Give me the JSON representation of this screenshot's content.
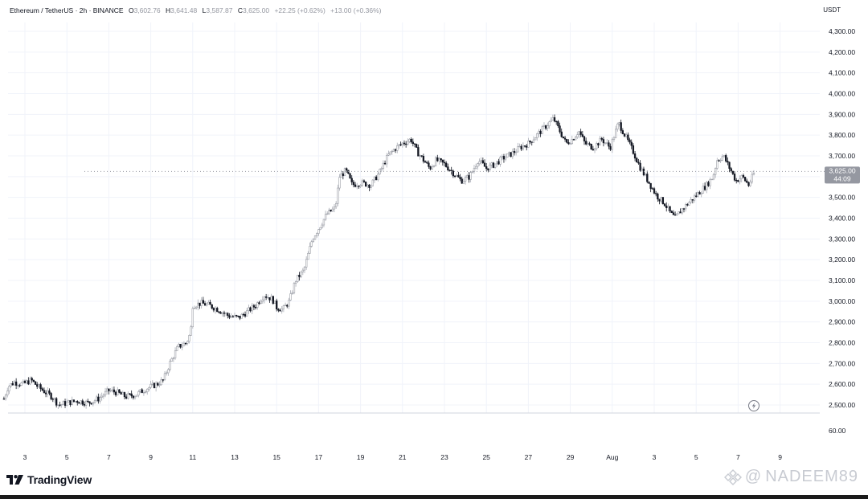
{
  "legend": {
    "symbol": "Ethereum / TetherUS · 2h · BINANCE",
    "o_label": "O",
    "o_value": "3,602.76",
    "h_label": "H",
    "h_value": "3,641.48",
    "l_label": "L",
    "l_value": "3,587.87",
    "c_label": "C",
    "c_value": "3,625.00",
    "change": "+22.25 (+0.62%)",
    "change2": "+13.00 (+0.36%)"
  },
  "currency": "USDT",
  "brand": "TradingView",
  "credit": "NADEEM89",
  "colors": {
    "up": "#c9cbd1",
    "down": "#131722",
    "grid": "#f0f3fa",
    "price_tag": "#9598a1"
  },
  "chart_data": {
    "type": "candlestick",
    "interval": "2h",
    "y_ticks": [
      "4,300.00",
      "4,200.00",
      "4,100.00",
      "4,000.00",
      "3,900.00",
      "3,800.00",
      "3,700.00",
      "3,600.00",
      "3,500.00",
      "3,400.00",
      "3,300.00",
      "3,200.00",
      "3,100.00",
      "3,000.00",
      "2,900.00",
      "2,800.00",
      "2,700.00",
      "2,600.00",
      "2,500.00"
    ],
    "ylim": [
      2480,
      4330
    ],
    "x_ticks": [
      "3",
      "5",
      "7",
      "9",
      "11",
      "13",
      "15",
      "17",
      "19",
      "21",
      "23",
      "25",
      "27",
      "29",
      "Aug",
      "3",
      "5",
      "7",
      "9"
    ],
    "x_range_days": [
      2,
      40
    ],
    "last_price": "3,625.00",
    "countdown": "44:09",
    "last_price_value": 3625,
    "volume_tick": "60.00",
    "close_path": [
      [
        2.0,
        2530
      ],
      [
        2.2,
        2590
      ],
      [
        2.5,
        2610
      ],
      [
        2.9,
        2600
      ],
      [
        3.3,
        2620
      ],
      [
        3.6,
        2590
      ],
      [
        4.0,
        2560
      ],
      [
        4.3,
        2540
      ],
      [
        4.6,
        2500
      ],
      [
        5.0,
        2510
      ],
      [
        5.5,
        2520
      ],
      [
        6.0,
        2510
      ],
      [
        6.5,
        2530
      ],
      [
        7.0,
        2570
      ],
      [
        7.4,
        2560
      ],
      [
        7.8,
        2540
      ],
      [
        8.3,
        2550
      ],
      [
        8.8,
        2580
      ],
      [
        9.3,
        2600
      ],
      [
        9.6,
        2620
      ],
      [
        9.9,
        2700
      ],
      [
        10.3,
        2780
      ],
      [
        10.7,
        2800
      ],
      [
        10.9,
        2850
      ],
      [
        11.0,
        2980
      ],
      [
        11.4,
        2990
      ],
      [
        11.8,
        2980
      ],
      [
        12.2,
        2960
      ],
      [
        12.7,
        2930
      ],
      [
        13.2,
        2920
      ],
      [
        13.6,
        2950
      ],
      [
        14.0,
        2980
      ],
      [
        14.4,
        3030
      ],
      [
        14.8,
        3010
      ],
      [
        15.0,
        2970
      ],
      [
        15.3,
        2960
      ],
      [
        15.6,
        3000
      ],
      [
        15.9,
        3100
      ],
      [
        16.3,
        3150
      ],
      [
        16.7,
        3300
      ],
      [
        17.0,
        3350
      ],
      [
        17.4,
        3420
      ],
      [
        17.8,
        3450
      ],
      [
        18.0,
        3600
      ],
      [
        18.3,
        3630
      ],
      [
        18.6,
        3560
      ],
      [
        19.0,
        3570
      ],
      [
        19.5,
        3560
      ],
      [
        19.9,
        3620
      ],
      [
        20.3,
        3700
      ],
      [
        20.7,
        3740
      ],
      [
        21.0,
        3760
      ],
      [
        21.4,
        3780
      ],
      [
        21.7,
        3720
      ],
      [
        22.0,
        3680
      ],
      [
        22.3,
        3640
      ],
      [
        22.6,
        3680
      ],
      [
        23.0,
        3660
      ],
      [
        23.4,
        3620
      ],
      [
        23.8,
        3580
      ],
      [
        24.2,
        3600
      ],
      [
        24.6,
        3680
      ],
      [
        25.0,
        3640
      ],
      [
        25.4,
        3660
      ],
      [
        25.8,
        3690
      ],
      [
        26.2,
        3710
      ],
      [
        26.6,
        3740
      ],
      [
        27.0,
        3760
      ],
      [
        27.4,
        3800
      ],
      [
        27.8,
        3840
      ],
      [
        28.2,
        3880
      ],
      [
        28.5,
        3820
      ],
      [
        28.8,
        3760
      ],
      [
        29.1,
        3780
      ],
      [
        29.4,
        3820
      ],
      [
        29.7,
        3760
      ],
      [
        30.1,
        3740
      ],
      [
        30.5,
        3780
      ],
      [
        30.9,
        3740
      ],
      [
        31.3,
        3860
      ],
      [
        31.6,
        3800
      ],
      [
        32.0,
        3720
      ],
      [
        32.3,
        3650
      ],
      [
        32.7,
        3580
      ],
      [
        33.1,
        3510
      ],
      [
        33.5,
        3470
      ],
      [
        33.8,
        3420
      ],
      [
        34.0,
        3400
      ],
      [
        34.3,
        3440
      ],
      [
        34.7,
        3480
      ],
      [
        35.1,
        3520
      ],
      [
        35.5,
        3560
      ],
      [
        35.8,
        3600
      ],
      [
        36.0,
        3680
      ],
      [
        36.3,
        3700
      ],
      [
        36.6,
        3640
      ],
      [
        36.9,
        3580
      ],
      [
        37.2,
        3600
      ],
      [
        37.5,
        3560
      ],
      [
        37.8,
        3625
      ]
    ]
  }
}
